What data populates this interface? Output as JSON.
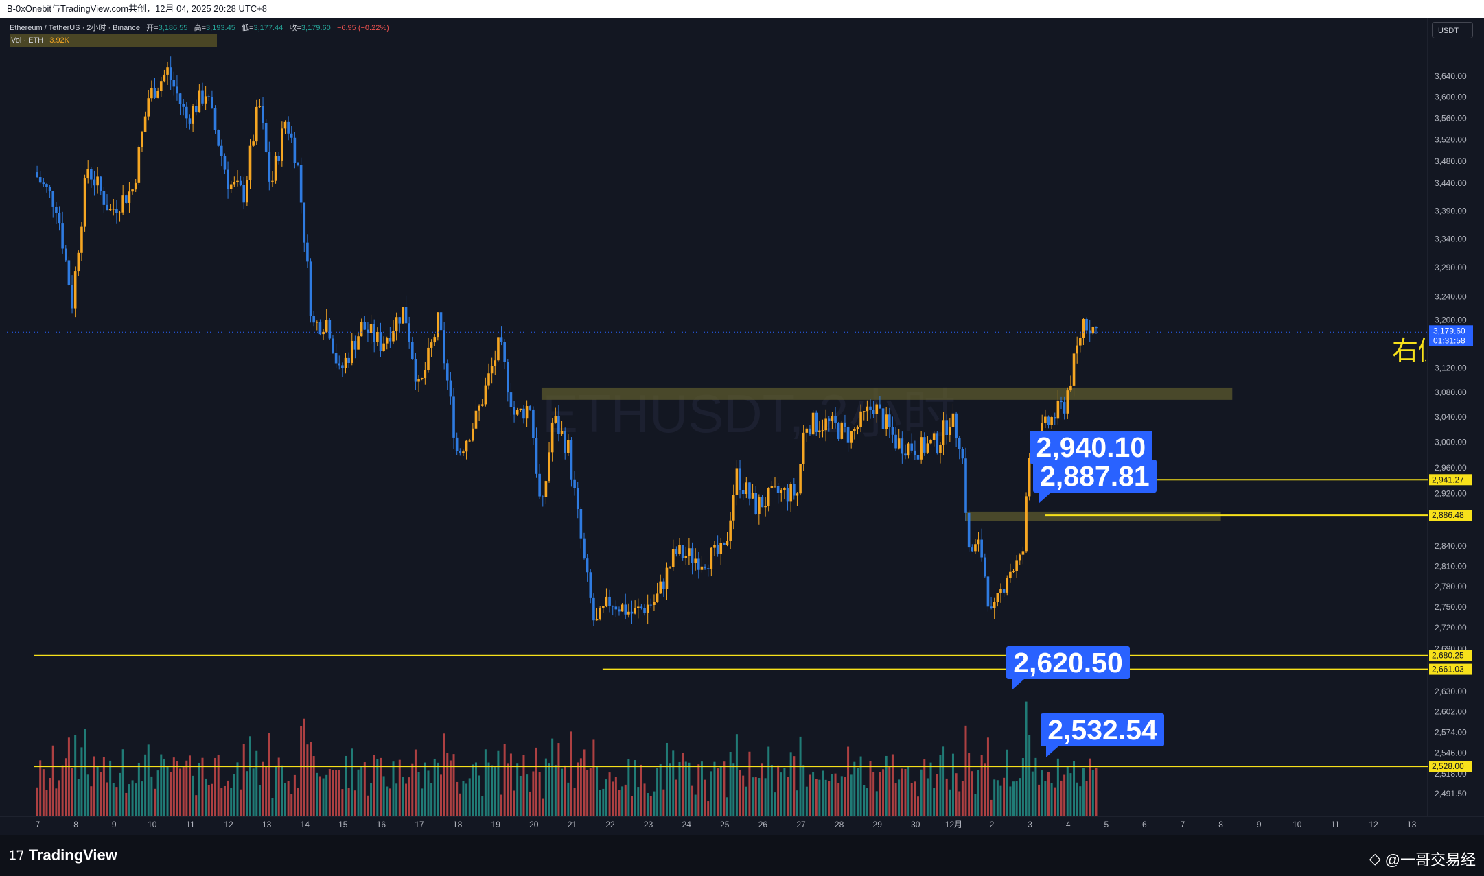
{
  "window": {
    "title": "B-0xOnebit与TradingView.com共创，12月 04, 2025 20:28 UTC+8"
  },
  "legend": {
    "symbol_line": "Ethereum / TetherUS · 2小时 · Binance",
    "open_label": "开=",
    "open_value": "3,186.55",
    "high_label": "高=",
    "high_value": "3,193.45",
    "low_label": "低=",
    "low_value": "3,177.44",
    "close_label": "收=",
    "close_value": "3,179.60",
    "change": "−6.95 (−0.22%)",
    "vol_label": "Vol · ETH",
    "vol_value": "3.92K"
  },
  "currency_button": "USDT",
  "watermark": "ETHUSDT, 2小时",
  "side_text": "右侧",
  "branding": {
    "tv_logo_text": "TradingView",
    "credit": "@一哥交易经"
  },
  "colors": {
    "background": "#131722",
    "up": "#f5a623",
    "down": "#2f7be0",
    "vol_up": "#26a69a",
    "vol_down": "#ef5350",
    "level_line": "#f7e11b",
    "callout": "#2962ff",
    "zone": "#5c5a2e"
  },
  "chart_data": {
    "type": "candlestick",
    "symbol": "ETHUSDT",
    "timeframe": "2小时",
    "exchange": "Binance",
    "ylim": [
      2480,
      3700
    ],
    "y_scale": "log",
    "price_ticks": [
      "3,640.00",
      "3,600.00",
      "3,560.00",
      "3,520.00",
      "3,480.00",
      "3,440.00",
      "3,390.00",
      "3,340.00",
      "3,290.00",
      "3,240.00",
      "3,200.00",
      "3,120.00",
      "3,080.00",
      "3,040.00",
      "3,000.00",
      "2,960.00",
      "2,920.00",
      "2,840.00",
      "2,810.00",
      "2,780.00",
      "2,750.00",
      "2,720.00",
      "2,690.00",
      "2,630.00",
      "2,602.00",
      "2,574.00",
      "2,546.00",
      "2,518.00",
      "2,491.50"
    ],
    "x_ticks": [
      "7",
      "8",
      "9",
      "10",
      "11",
      "12",
      "13",
      "14",
      "15",
      "16",
      "17",
      "18",
      "19",
      "20",
      "21",
      "22",
      "23",
      "24",
      "25",
      "26",
      "27",
      "28",
      "29",
      "30",
      "12月",
      "2",
      "3",
      "4",
      "5",
      "6",
      "7",
      "8",
      "9",
      "10",
      "11",
      "12",
      "13"
    ],
    "last_price": "3,179.60",
    "countdown": "01:31:58",
    "anchors": [
      {
        "day": 6.9,
        "price": 3460
      },
      {
        "day": 7.5,
        "price": 3400
      },
      {
        "day": 7.9,
        "price": 3230
      },
      {
        "day": 8.3,
        "price": 3470
      },
      {
        "day": 8.9,
        "price": 3390
      },
      {
        "day": 9.5,
        "price": 3430
      },
      {
        "day": 9.9,
        "price": 3600
      },
      {
        "day": 10.4,
        "price": 3650
      },
      {
        "day": 10.9,
        "price": 3560
      },
      {
        "day": 11.4,
        "price": 3610
      },
      {
        "day": 12.0,
        "price": 3440
      },
      {
        "day": 12.4,
        "price": 3420
      },
      {
        "day": 12.8,
        "price": 3590
      },
      {
        "day": 13.1,
        "price": 3430
      },
      {
        "day": 13.5,
        "price": 3560
      },
      {
        "day": 13.8,
        "price": 3480
      },
      {
        "day": 14.2,
        "price": 3190
      },
      {
        "day": 14.6,
        "price": 3200
      },
      {
        "day": 14.9,
        "price": 3110
      },
      {
        "day": 15.5,
        "price": 3190
      },
      {
        "day": 16.0,
        "price": 3160
      },
      {
        "day": 16.6,
        "price": 3220
      },
      {
        "day": 17.0,
        "price": 3080
      },
      {
        "day": 17.5,
        "price": 3200
      },
      {
        "day": 18.0,
        "price": 2980
      },
      {
        "day": 18.5,
        "price": 3040
      },
      {
        "day": 19.1,
        "price": 3160
      },
      {
        "day": 19.5,
        "price": 3040
      },
      {
        "day": 19.9,
        "price": 3060
      },
      {
        "day": 20.2,
        "price": 2880
      },
      {
        "day": 20.5,
        "price": 3040
      },
      {
        "day": 20.9,
        "price": 2990
      },
      {
        "day": 21.3,
        "price": 2820
      },
      {
        "day": 21.6,
        "price": 2720
      },
      {
        "day": 22.0,
        "price": 2760
      },
      {
        "day": 22.6,
        "price": 2740
      },
      {
        "day": 23.2,
        "price": 2760
      },
      {
        "day": 23.7,
        "price": 2830
      },
      {
        "day": 24.4,
        "price": 2820
      },
      {
        "day": 25.0,
        "price": 2830
      },
      {
        "day": 25.3,
        "price": 2950
      },
      {
        "day": 25.8,
        "price": 2900
      },
      {
        "day": 26.4,
        "price": 2920
      },
      {
        "day": 26.9,
        "price": 2920
      },
      {
        "day": 27.1,
        "price": 3030
      },
      {
        "day": 27.7,
        "price": 3030
      },
      {
        "day": 28.3,
        "price": 3010
      },
      {
        "day": 28.9,
        "price": 3060
      },
      {
        "day": 29.5,
        "price": 3000
      },
      {
        "day": 30.1,
        "price": 2990
      },
      {
        "day": 30.6,
        "price": 3000
      },
      {
        "day": 30.9,
        "price": 3040
      },
      {
        "day": 31.2,
        "price": 3000
      },
      {
        "day": 31.4,
        "price": 2830
      },
      {
        "day": 31.7,
        "price": 2840
      },
      {
        "day": 32.0,
        "price": 2730
      },
      {
        "day": 32.4,
        "price": 2800
      },
      {
        "day": 32.8,
        "price": 2820
      },
      {
        "day": 33.0,
        "price": 2990
      },
      {
        "day": 33.6,
        "price": 3040
      },
      {
        "day": 33.9,
        "price": 3060
      },
      {
        "day": 34.2,
        "price": 3140
      },
      {
        "day": 34.4,
        "price": 3200
      },
      {
        "day": 34.8,
        "price": 3180
      }
    ],
    "levels": [
      {
        "price": 2941.27,
        "label": "2,941.27",
        "from_day": 33.3
      },
      {
        "price": 2886.48,
        "label": "2,886.48",
        "from_day": 33.4
      },
      {
        "price": 2680.25,
        "label": "2,680.25",
        "from_day": 6.9
      },
      {
        "price": 2661.03,
        "label": "2,661.03",
        "from_day": 21.8
      },
      {
        "price": 2528.0,
        "label": "2,528.00",
        "from_day": 6.9
      }
    ],
    "zones": [
      {
        "from_day": 20.2,
        "to_day": 38.3,
        "low": 3068,
        "high": 3088
      },
      {
        "from_day": 31.3,
        "to_day": 38.0,
        "low": 2878,
        "high": 2892
      }
    ],
    "annotations": [
      {
        "text": "2,940.10",
        "day": 34.6,
        "price": 2975
      },
      {
        "text": "2,887.81",
        "day": 34.7,
        "price": 2930
      },
      {
        "text": "2,620.50",
        "day": 34.0,
        "price": 2655
      },
      {
        "text": "2,532.54",
        "day": 34.9,
        "price": 2562
      }
    ]
  }
}
